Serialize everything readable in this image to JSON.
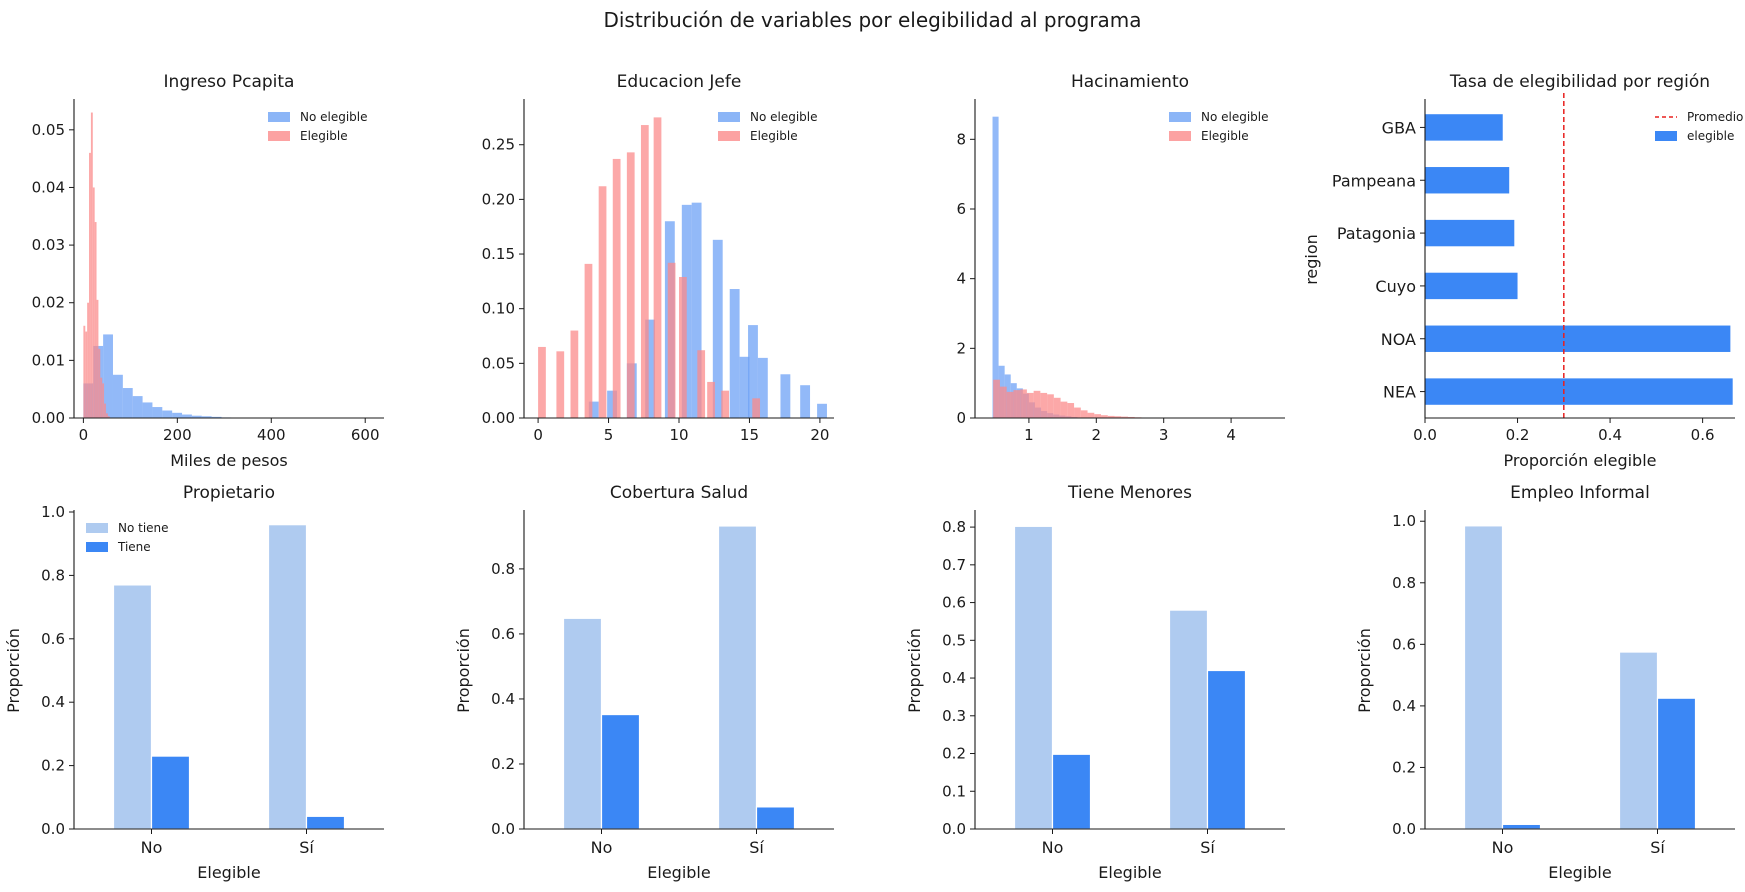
{
  "figure": {
    "title": "Distribución de variables por elegibilidad al programa"
  },
  "colors": {
    "no_elegible": "#6ea2f5",
    "elegible": "#fb8b8b",
    "tiene": "#3b87f5",
    "no_tiene": "#afcbf0",
    "promedio": "#e8201f",
    "axis": "#1a1a1a"
  },
  "chart_data": [
    {
      "type": "histogram",
      "title": "Ingreso Pcapita",
      "xlabel": "Miles de pesos",
      "ylabel": "",
      "xlim": [
        -20,
        640
      ],
      "ylim": [
        0,
        0.055
      ],
      "xticks": [
        0,
        200,
        400,
        600
      ],
      "yticks": [
        0.0,
        0.01,
        0.02,
        0.03,
        0.04,
        0.05
      ],
      "tick_decimals": 2,
      "xtick_decimals": 0,
      "legend": [
        "No elegible",
        "Elegible"
      ],
      "legend_loc": "upper right",
      "series": [
        {
          "name": "No elegible",
          "bin_width": 21,
          "bins": [
            [
              0,
              0.006
            ],
            [
              21,
              0.0125
            ],
            [
              42,
              0.0145
            ],
            [
              63,
              0.0075
            ],
            [
              84,
              0.0052
            ],
            [
              105,
              0.0038
            ],
            [
              126,
              0.0027
            ],
            [
              147,
              0.0019
            ],
            [
              168,
              0.0013
            ],
            [
              189,
              0.0009
            ],
            [
              210,
              0.0006
            ],
            [
              231,
              0.0004
            ],
            [
              252,
              0.0003
            ],
            [
              273,
              0.0002
            ],
            [
              294,
              0.0001
            ]
          ]
        },
        {
          "name": "Elegible",
          "bin_width": 4,
          "bins": [
            [
              0,
              0.016
            ],
            [
              4,
              0.015
            ],
            [
              8,
              0.02
            ],
            [
              12,
              0.046
            ],
            [
              16,
              0.053
            ],
            [
              20,
              0.04
            ],
            [
              24,
              0.034
            ],
            [
              28,
              0.0205
            ],
            [
              32,
              0.012
            ],
            [
              36,
              0.007
            ],
            [
              40,
              0.006
            ],
            [
              44,
              0.0025
            ],
            [
              48,
              0.0008
            ],
            [
              52,
              0.0003
            ]
          ]
        }
      ]
    },
    {
      "type": "histogram",
      "title": "Educacion Jefe",
      "xlabel": "",
      "ylabel": "",
      "xlim": [
        -1,
        21
      ],
      "ylim": [
        0,
        0.29
      ],
      "xticks": [
        0,
        5,
        10,
        15,
        20
      ],
      "yticks": [
        0.0,
        0.05,
        0.1,
        0.15,
        0.2,
        0.25
      ],
      "tick_decimals": 2,
      "xtick_decimals": 0,
      "legend": [
        "No elegible",
        "Elegible"
      ],
      "legend_loc": "upper right",
      "series": [
        {
          "name": "No elegible",
          "bin_width": 0.7,
          "bins": [
            [
              3.6,
              0.015
            ],
            [
              4.9,
              0.025
            ],
            [
              6.3,
              0.05
            ],
            [
              7.6,
              0.09
            ],
            [
              9,
              0.18
            ],
            [
              10.2,
              0.195
            ],
            [
              10.9,
              0.197
            ],
            [
              12.4,
              0.163
            ],
            [
              13.6,
              0.118
            ],
            [
              14.3,
              0.056
            ],
            [
              14.9,
              0.085
            ],
            [
              15.6,
              0.055
            ],
            [
              17.2,
              0.04
            ],
            [
              18.6,
              0.03
            ],
            [
              19.8,
              0.013
            ]
          ]
        },
        {
          "name": "Elegible",
          "bin_width": 0.55,
          "bins": [
            [
              0,
              0.065
            ],
            [
              1.3,
              0.061
            ],
            [
              2.3,
              0.08
            ],
            [
              3.3,
              0.141
            ],
            [
              4.3,
              0.212
            ],
            [
              5.3,
              0.237
            ],
            [
              6.3,
              0.243
            ],
            [
              7.3,
              0.268
            ],
            [
              8.2,
              0.275
            ],
            [
              9.2,
              0.142
            ],
            [
              10,
              0.129
            ],
            [
              11.3,
              0.062
            ],
            [
              12,
              0.033
            ],
            [
              13,
              0.025
            ],
            [
              15.2,
              0.018
            ]
          ]
        }
      ]
    },
    {
      "type": "histogram",
      "title": "Hacinamiento",
      "xlabel": "",
      "ylabel": "",
      "xlim": [
        0.2,
        4.8
      ],
      "ylim": [
        0,
        9.1
      ],
      "xticks": [
        1,
        2,
        3,
        4
      ],
      "yticks": [
        0,
        2,
        4,
        6,
        8
      ],
      "tick_decimals": 0,
      "xtick_decimals": 0,
      "legend": [
        "No elegible",
        "Elegible"
      ],
      "legend_loc": "upper right",
      "series": [
        {
          "name": "No elegible",
          "bin_width": 0.09,
          "bins": [
            [
              0.46,
              8.65
            ],
            [
              0.55,
              1.5
            ],
            [
              0.64,
              1.25
            ],
            [
              0.73,
              1.0
            ],
            [
              0.82,
              0.85
            ],
            [
              0.91,
              0.7
            ],
            [
              1.0,
              0.45
            ],
            [
              1.09,
              0.3
            ],
            [
              1.18,
              0.2
            ],
            [
              1.27,
              0.14
            ],
            [
              1.36,
              0.1
            ],
            [
              1.45,
              0.07
            ],
            [
              1.54,
              0.05
            ],
            [
              1.63,
              0.03
            ]
          ]
        },
        {
          "name": "Elegible",
          "bin_width": 0.1,
          "bins": [
            [
              0.47,
              1.1
            ],
            [
              0.57,
              0.9
            ],
            [
              0.67,
              0.75
            ],
            [
              0.77,
              0.8
            ],
            [
              0.87,
              0.82
            ],
            [
              0.97,
              0.72
            ],
            [
              1.07,
              0.78
            ],
            [
              1.17,
              0.72
            ],
            [
              1.27,
              0.68
            ],
            [
              1.37,
              0.58
            ],
            [
              1.47,
              0.47
            ],
            [
              1.57,
              0.43
            ],
            [
              1.67,
              0.3
            ],
            [
              1.77,
              0.22
            ],
            [
              1.87,
              0.15
            ],
            [
              1.97,
              0.11
            ],
            [
              2.07,
              0.08
            ],
            [
              2.17,
              0.06
            ],
            [
              2.27,
              0.05
            ],
            [
              2.37,
              0.04
            ],
            [
              2.47,
              0.03
            ],
            [
              2.57,
              0.02
            ],
            [
              2.67,
              0.01
            ]
          ]
        }
      ]
    },
    {
      "type": "barh",
      "title": "Tasa de elegibilidad por región",
      "xlabel": "Proporción elegible",
      "ylabel": "region",
      "xlim": [
        0,
        0.67
      ],
      "xticks": [
        0.0,
        0.2,
        0.4,
        0.6
      ],
      "tick_decimals": 1,
      "categories": [
        "GBA",
        "Pampeana",
        "Patagonia",
        "Cuyo",
        "NOA",
        "NEA"
      ],
      "values": [
        0.168,
        0.182,
        0.193,
        0.2,
        0.66,
        0.665
      ],
      "mean_line": 0.3,
      "legend": [
        "Promedio",
        "elegible"
      ],
      "legend_loc": "upper right"
    },
    {
      "type": "bar",
      "title": "Propietario",
      "xlabel": "Elegible",
      "ylabel": "Proporción",
      "categories": [
        "No",
        "Sí"
      ],
      "ylim": [
        0,
        1.0
      ],
      "yticks": [
        0.0,
        0.2,
        0.4,
        0.6,
        0.8,
        1.0
      ],
      "tick_decimals": 1,
      "legend": [
        "No tiene",
        "Tiene"
      ],
      "legend_loc": "upper left",
      "series": [
        {
          "name": "No tiene",
          "values": [
            0.77,
            0.96
          ]
        },
        {
          "name": "Tiene",
          "values": [
            0.23,
            0.04
          ]
        }
      ]
    },
    {
      "type": "bar",
      "title": "Cobertura Salud",
      "xlabel": "Elegible",
      "ylabel": "Proporción",
      "categories": [
        "No",
        "Sí"
      ],
      "ylim": [
        0,
        0.975
      ],
      "yticks": [
        0.0,
        0.2,
        0.4,
        0.6,
        0.8
      ],
      "tick_decimals": 1,
      "legend": [],
      "legend_loc": "",
      "series": [
        {
          "name": "No tiene",
          "values": [
            0.648,
            0.932
          ]
        },
        {
          "name": "Tiene",
          "values": [
            0.352,
            0.068
          ]
        }
      ]
    },
    {
      "type": "bar",
      "title": "Tiene Menores",
      "xlabel": "Elegible",
      "ylabel": "Proporción",
      "categories": [
        "No",
        "Sí"
      ],
      "ylim": [
        0,
        0.84
      ],
      "yticks": [
        0.0,
        0.1,
        0.2,
        0.3,
        0.4,
        0.5,
        0.6,
        0.7,
        0.8
      ],
      "tick_decimals": 1,
      "legend": [],
      "legend_loc": "",
      "series": [
        {
          "name": "No tiene",
          "values": [
            0.802,
            0.58
          ]
        },
        {
          "name": "Tiene",
          "values": [
            0.198,
            0.42
          ]
        }
      ]
    },
    {
      "type": "bar",
      "title": "Empleo Informal",
      "xlabel": "Elegible",
      "ylabel": "Proporción",
      "categories": [
        "No",
        "Sí"
      ],
      "ylim": [
        0,
        1.03
      ],
      "yticks": [
        0.0,
        0.2,
        0.4,
        0.6,
        0.8,
        1.0
      ],
      "tick_decimals": 1,
      "legend": [],
      "legend_loc": "",
      "series": [
        {
          "name": "No tiene",
          "values": [
            0.985,
            0.575
          ]
        },
        {
          "name": "Tiene",
          "values": [
            0.015,
            0.425
          ]
        }
      ]
    }
  ]
}
